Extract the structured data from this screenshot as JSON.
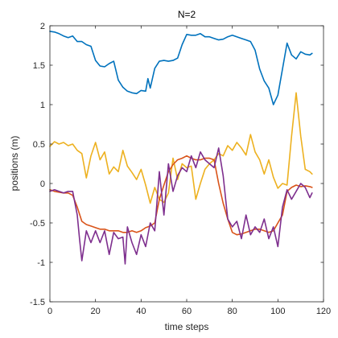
{
  "chart_data": {
    "type": "line",
    "title": "N=2",
    "xlabel": "time steps",
    "ylabel": "positions (m)",
    "xlim": [
      0,
      120
    ],
    "ylim": [
      -1.5,
      2
    ],
    "xticks": [
      0,
      20,
      40,
      60,
      80,
      100,
      120
    ],
    "xtick_labels": [
      "0",
      "20",
      "40",
      "60",
      "80",
      "100",
      "120"
    ],
    "yticks": [
      -1.5,
      -1,
      -0.5,
      0,
      0.5,
      1,
      1.5,
      2
    ],
    "ytick_labels": [
      "-1.5",
      "-1",
      "-0.5",
      "0",
      "0.5",
      "1",
      "1.5",
      "2"
    ],
    "grid": false,
    "box": true,
    "series": [
      {
        "color": "#0072BD",
        "x": [
          0,
          2,
          4,
          6,
          8,
          10,
          12,
          14,
          16,
          18,
          20,
          22,
          24,
          26,
          28,
          30,
          32,
          34,
          36,
          38,
          40,
          42,
          43,
          44,
          46,
          48,
          50,
          52,
          54,
          56,
          58,
          60,
          62,
          64,
          66,
          68,
          70,
          72,
          74,
          76,
          78,
          80,
          82,
          84,
          86,
          88,
          90,
          92,
          94,
          96,
          98,
          100,
          102,
          104,
          106,
          108,
          110,
          112,
          114,
          115
        ],
        "y": [
          1.93,
          1.92,
          1.9,
          1.87,
          1.85,
          1.87,
          1.8,
          1.8,
          1.76,
          1.74,
          1.56,
          1.49,
          1.48,
          1.52,
          1.55,
          1.31,
          1.22,
          1.17,
          1.15,
          1.14,
          1.18,
          1.17,
          1.33,
          1.21,
          1.46,
          1.55,
          1.56,
          1.55,
          1.56,
          1.59,
          1.76,
          1.89,
          1.88,
          1.88,
          1.9,
          1.86,
          1.86,
          1.84,
          1.82,
          1.83,
          1.86,
          1.88,
          1.86,
          1.84,
          1.82,
          1.8,
          1.69,
          1.45,
          1.3,
          1.21,
          1.0,
          1.12,
          1.45,
          1.78,
          1.63,
          1.58,
          1.67,
          1.64,
          1.63,
          1.65
        ]
      },
      {
        "color": "#EDB120",
        "x": [
          0,
          2,
          4,
          6,
          8,
          10,
          12,
          14,
          16,
          18,
          20,
          22,
          24,
          26,
          28,
          30,
          32,
          34,
          36,
          38,
          40,
          42,
          44,
          46,
          48,
          50,
          52,
          54,
          56,
          58,
          60,
          62,
          64,
          66,
          68,
          70,
          72,
          74,
          76,
          78,
          80,
          82,
          84,
          86,
          88,
          90,
          92,
          94,
          96,
          98,
          100,
          102,
          104,
          106,
          108,
          110,
          112,
          114,
          115
        ],
        "y": [
          0.47,
          0.53,
          0.5,
          0.52,
          0.48,
          0.5,
          0.42,
          0.38,
          0.07,
          0.35,
          0.52,
          0.3,
          0.4,
          0.12,
          0.21,
          0.15,
          0.42,
          0.22,
          0.14,
          0.05,
          0.18,
          -0.02,
          -0.25,
          -0.05,
          -0.2,
          -0.24,
          -0.12,
          0.32,
          0.05,
          0.25,
          0.2,
          0.22,
          -0.2,
          0.0,
          0.18,
          0.25,
          0.3,
          0.38,
          0.35,
          0.48,
          0.42,
          0.52,
          0.45,
          0.36,
          0.62,
          0.4,
          0.3,
          0.12,
          0.3,
          0.08,
          -0.06,
          0.0,
          -0.02,
          0.6,
          1.15,
          0.6,
          0.18,
          0.15,
          0.12
        ]
      },
      {
        "color": "#D95319",
        "x": [
          0,
          2,
          4,
          6,
          8,
          10,
          12,
          14,
          16,
          18,
          20,
          22,
          24,
          26,
          28,
          30,
          32,
          34,
          36,
          38,
          40,
          42,
          44,
          46,
          48,
          50,
          52,
          54,
          56,
          58,
          60,
          62,
          64,
          66,
          68,
          70,
          72,
          74,
          76,
          78,
          80,
          82,
          84,
          86,
          88,
          90,
          92,
          94,
          96,
          98,
          100,
          102,
          104,
          106,
          108,
          110,
          112,
          114,
          115
        ],
        "y": [
          -0.08,
          -0.1,
          -0.11,
          -0.12,
          -0.12,
          -0.15,
          -0.3,
          -0.48,
          -0.52,
          -0.54,
          -0.56,
          -0.58,
          -0.58,
          -0.6,
          -0.6,
          -0.6,
          -0.62,
          -0.62,
          -0.6,
          -0.62,
          -0.6,
          -0.56,
          -0.54,
          -0.5,
          -0.2,
          -0.02,
          0.15,
          0.24,
          0.3,
          0.32,
          0.35,
          0.32,
          0.3,
          0.3,
          0.32,
          0.32,
          0.3,
          0.0,
          -0.25,
          -0.45,
          -0.62,
          -0.65,
          -0.64,
          -0.62,
          -0.6,
          -0.58,
          -0.58,
          -0.6,
          -0.62,
          -0.6,
          -0.5,
          -0.4,
          -0.1,
          -0.05,
          -0.02,
          -0.04,
          -0.03,
          -0.04,
          -0.05
        ]
      },
      {
        "color": "#7E2F8E",
        "x": [
          0,
          2,
          4,
          6,
          8,
          10,
          12,
          13,
          14,
          16,
          18,
          20,
          22,
          24,
          26,
          28,
          30,
          32,
          33,
          34,
          36,
          38,
          40,
          42,
          44,
          46,
          48,
          50,
          52,
          54,
          56,
          58,
          60,
          62,
          64,
          66,
          68,
          70,
          72,
          74,
          76,
          78,
          80,
          82,
          84,
          86,
          88,
          90,
          92,
          94,
          96,
          98,
          100,
          102,
          104,
          106,
          108,
          110,
          112,
          114,
          115
        ],
        "y": [
          -0.1,
          -0.08,
          -0.1,
          -0.12,
          -0.1,
          -0.1,
          -0.4,
          -0.7,
          -0.98,
          -0.6,
          -0.75,
          -0.6,
          -0.75,
          -0.6,
          -0.9,
          -0.62,
          -0.7,
          -0.68,
          -1.02,
          -0.55,
          -0.75,
          -0.9,
          -0.65,
          -0.8,
          -0.5,
          -0.6,
          0.15,
          -0.4,
          0.25,
          -0.1,
          0.1,
          0.2,
          0.15,
          0.35,
          0.2,
          0.4,
          0.3,
          0.25,
          0.2,
          0.45,
          0.1,
          -0.45,
          -0.55,
          -0.48,
          -0.7,
          -0.4,
          -0.65,
          -0.55,
          -0.62,
          -0.45,
          -0.7,
          -0.55,
          -0.8,
          -0.3,
          -0.08,
          -0.2,
          -0.1,
          0.0,
          -0.05,
          -0.18,
          -0.12
        ]
      }
    ]
  }
}
